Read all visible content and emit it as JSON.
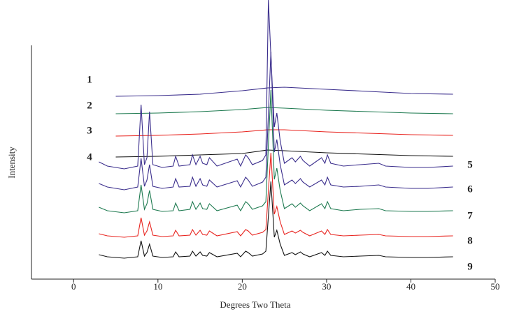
{
  "chart_data": {
    "type": "line",
    "x_label": "Degrees Two Theta",
    "y_label": "Intensity",
    "xlim": [
      -5,
      50
    ],
    "xticks": [
      0,
      10,
      20,
      30,
      40,
      50
    ],
    "ylim": [
      0,
      400
    ],
    "series": [
      {
        "name": "1",
        "color": "#3a2d8c",
        "x": [
          5,
          10,
          15,
          20,
          23,
          25,
          30,
          35,
          40,
          45
        ],
        "values": [
          262,
          263,
          265,
          270,
          274,
          275,
          272,
          269,
          266,
          265
        ]
      },
      {
        "name": "2",
        "color": "#1e7a50",
        "x": [
          5,
          10,
          15,
          20,
          23,
          25,
          30,
          35,
          40,
          45
        ],
        "values": [
          237,
          238,
          240,
          243,
          246,
          245,
          242,
          240,
          238,
          237
        ]
      },
      {
        "name": "3",
        "color": "#e8231e",
        "x": [
          5,
          10,
          15,
          20,
          23,
          25,
          30,
          35,
          40,
          45
        ],
        "values": [
          205,
          206,
          208,
          211,
          214,
          214,
          211,
          209,
          207,
          206
        ]
      },
      {
        "name": "4",
        "color": "#111111",
        "x": [
          5,
          10,
          15,
          20,
          23,
          25,
          30,
          35,
          40,
          45
        ],
        "values": [
          175,
          176,
          178,
          180,
          185,
          184,
          181,
          179,
          177,
          176
        ]
      },
      {
        "name": "5",
        "color": "#3a2d8c",
        "x": [
          3,
          4,
          6,
          7.6,
          8,
          8.4,
          8.7,
          9,
          9.4,
          10.5,
          11.8,
          12.1,
          12.5,
          13.8,
          14.1,
          14.5,
          15,
          15.3,
          15.8,
          16.1,
          17,
          19.4,
          19.8,
          20.4,
          20.7,
          21.2,
          22.4,
          22.8,
          23.1,
          23.4,
          23.8,
          24.1,
          24.5,
          25,
          25.9,
          26.3,
          26.9,
          27.2,
          28,
          29.4,
          29.8,
          30.1,
          30.5,
          32,
          34,
          36.2,
          37,
          40,
          42,
          45
        ],
        "values": [
          168,
          162,
          158,
          162,
          250,
          164,
          174,
          240,
          164,
          160,
          162,
          176,
          162,
          164,
          178,
          164,
          176,
          166,
          164,
          174,
          162,
          172,
          162,
          178,
          174,
          164,
          170,
          178,
          400,
          320,
          218,
          238,
          198,
          166,
          174,
          168,
          176,
          170,
          162,
          174,
          166,
          178,
          166,
          162,
          164,
          166,
          162,
          160,
          160,
          162
        ]
      },
      {
        "name": "6",
        "color": "#3a2d8c",
        "x": [
          3,
          4,
          6,
          7.6,
          8,
          8.4,
          8.7,
          9,
          9.4,
          10.5,
          11.8,
          12.1,
          12.5,
          13.8,
          14.1,
          14.5,
          15,
          15.3,
          15.8,
          16.1,
          17,
          19.4,
          19.8,
          20.4,
          20.7,
          21.2,
          22.4,
          22.8,
          23.1,
          23.4,
          23.8,
          24.1,
          24.5,
          25,
          25.9,
          26.3,
          26.9,
          27.2,
          28,
          29.4,
          29.8,
          30.1,
          30.5,
          32,
          34,
          36.2,
          37,
          40,
          42,
          45
        ],
        "values": [
          137,
          132,
          128,
          132,
          173,
          133,
          142,
          164,
          133,
          130,
          132,
          144,
          132,
          133,
          146,
          133,
          144,
          135,
          133,
          142,
          132,
          141,
          132,
          146,
          142,
          133,
          139,
          146,
          236,
          326,
          182,
          200,
          164,
          135,
          142,
          137,
          144,
          139,
          132,
          142,
          135,
          146,
          135,
          132,
          133,
          135,
          132,
          130,
          130,
          132
        ]
      },
      {
        "name": "7",
        "color": "#1e7a50",
        "x": [
          3,
          4,
          6,
          7.6,
          8,
          8.4,
          8.7,
          9,
          9.4,
          10.5,
          11.8,
          12.1,
          12.5,
          13.8,
          14.1,
          14.5,
          15,
          15.3,
          15.8,
          16.1,
          17,
          19.4,
          19.8,
          20.4,
          20.7,
          21.2,
          22.4,
          22.8,
          23.1,
          23.4,
          23.8,
          24.1,
          24.5,
          25,
          25.9,
          26.3,
          26.9,
          27.2,
          28,
          29.4,
          29.8,
          30.1,
          30.5,
          32,
          34,
          36.2,
          37,
          40,
          42,
          45
        ],
        "values": [
          103,
          98,
          95,
          98,
          135,
          100,
          108,
          127,
          100,
          97,
          98,
          109,
          98,
          100,
          111,
          100,
          109,
          101,
          100,
          108,
          98,
          106,
          98,
          111,
          108,
          100,
          105,
          111,
          191,
          271,
          143,
          159,
          127,
          101,
          108,
          103,
          109,
          105,
          98,
          108,
          101,
          111,
          101,
          98,
          100,
          101,
          98,
          97,
          97,
          98
        ]
      },
      {
        "name": "8",
        "color": "#e8231e",
        "x": [
          3,
          4,
          6,
          7.6,
          8,
          8.4,
          8.7,
          9,
          9.4,
          10.5,
          11.8,
          12.1,
          12.5,
          13.8,
          14.1,
          14.5,
          15,
          15.3,
          15.8,
          16.1,
          17,
          19.4,
          19.8,
          20.4,
          20.7,
          21.2,
          22.4,
          22.8,
          23.1,
          23.4,
          23.8,
          24.1,
          24.5,
          25,
          25.9,
          26.3,
          26.9,
          27.2,
          28,
          29.4,
          29.8,
          30.1,
          30.5,
          32,
          34,
          36.2,
          37,
          40,
          42,
          45
        ],
        "values": [
          65,
          62,
          60,
          62,
          88,
          63,
          69,
          82,
          63,
          61,
          62,
          70,
          62,
          63,
          71,
          63,
          70,
          64,
          63,
          69,
          62,
          68,
          62,
          71,
          69,
          63,
          67,
          71,
          126,
          181,
          93,
          104,
          82,
          64,
          69,
          66,
          70,
          67,
          62,
          69,
          64,
          71,
          64,
          62,
          63,
          64,
          62,
          61,
          61,
          62
        ]
      },
      {
        "name": "9",
        "color": "#111111",
        "x": [
          3,
          4,
          6,
          7.6,
          8,
          8.4,
          8.7,
          9,
          9.4,
          10.5,
          11.8,
          12.1,
          12.5,
          13.8,
          14.1,
          14.5,
          15,
          15.3,
          15.8,
          16.1,
          17,
          19.4,
          19.8,
          20.4,
          20.7,
          21.2,
          22.4,
          22.8,
          23.1,
          23.4,
          23.8,
          24.1,
          24.5,
          25,
          25.9,
          26.3,
          26.9,
          27.2,
          28,
          29.4,
          29.8,
          30.1,
          30.5,
          32,
          34,
          36.2,
          37,
          40,
          42,
          45
        ],
        "values": [
          35,
          32,
          30,
          32,
          55,
          33,
          38,
          50,
          33,
          31,
          32,
          39,
          32,
          33,
          40,
          33,
          39,
          34,
          33,
          38,
          32,
          37,
          32,
          40,
          38,
          33,
          36,
          40,
          90,
          140,
          60,
          70,
          50,
          34,
          38,
          35,
          39,
          36,
          32,
          38,
          34,
          40,
          34,
          32,
          33,
          34,
          32,
          31,
          31,
          32
        ]
      }
    ]
  }
}
